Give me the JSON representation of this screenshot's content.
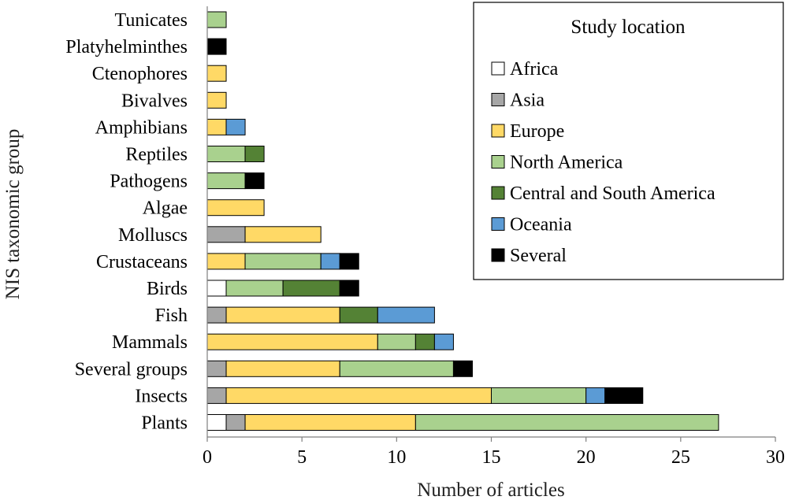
{
  "chart_data": {
    "type": "bar",
    "orientation": "horizontal",
    "stacked": true,
    "xlabel": "Number of articles",
    "ylabel": "NIS taxonomic group",
    "xlim": [
      0,
      30
    ],
    "xticks": [
      0,
      5,
      10,
      15,
      20,
      25,
      30
    ],
    "grid": false,
    "legend": {
      "title": "Study location",
      "position": "top-right"
    },
    "categories": [
      "Tunicates",
      "Platyhelminthes",
      "Ctenophores",
      "Bivalves",
      "Amphibians",
      "Reptiles",
      "Pathogens",
      "Algae",
      "Molluscs",
      "Crustaceans",
      "Birds",
      "Fish",
      "Mammals",
      "Several groups",
      "Insects",
      "Plants"
    ],
    "series": [
      {
        "name": "Africa",
        "color": "#ffffff",
        "values": [
          0,
          0,
          0,
          0,
          0,
          0,
          0,
          0,
          0,
          0,
          1,
          0,
          0,
          0,
          0,
          1
        ]
      },
      {
        "name": "Asia",
        "color": "#a6a6a6",
        "values": [
          0,
          0,
          0,
          0,
          0,
          0,
          0,
          0,
          2,
          0,
          0,
          1,
          0,
          1,
          1,
          1
        ]
      },
      {
        "name": "Europe",
        "color": "#ffd966",
        "values": [
          0,
          0,
          1,
          1,
          1,
          0,
          0,
          3,
          4,
          2,
          0,
          6,
          9,
          6,
          14,
          9
        ]
      },
      {
        "name": "North America",
        "color": "#a9d18e",
        "values": [
          1,
          0,
          0,
          0,
          0,
          2,
          2,
          0,
          0,
          4,
          3,
          0,
          2,
          6,
          5,
          16
        ]
      },
      {
        "name": "Central and South America",
        "color": "#548235",
        "values": [
          0,
          0,
          0,
          0,
          0,
          1,
          0,
          0,
          0,
          0,
          3,
          2,
          1,
          0,
          0,
          0
        ]
      },
      {
        "name": "Oceania",
        "color": "#5b9bd5",
        "values": [
          0,
          0,
          0,
          0,
          1,
          0,
          0,
          0,
          0,
          1,
          0,
          3,
          1,
          0,
          1,
          0
        ]
      },
      {
        "name": "Several",
        "color": "#000000",
        "values": [
          0,
          1,
          0,
          0,
          0,
          0,
          1,
          0,
          0,
          1,
          1,
          0,
          0,
          1,
          2,
          0
        ]
      }
    ]
  }
}
